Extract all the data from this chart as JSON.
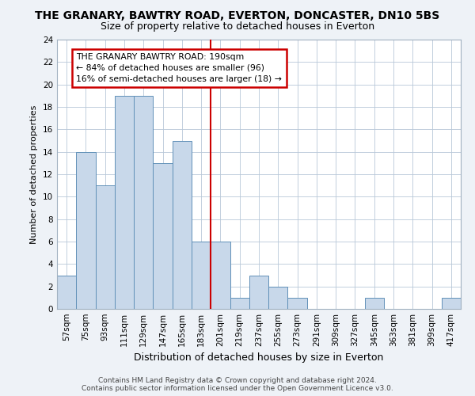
{
  "title": "THE GRANARY, BAWTRY ROAD, EVERTON, DONCASTER, DN10 5BS",
  "subtitle": "Size of property relative to detached houses in Everton",
  "xlabel": "Distribution of detached houses by size in Everton",
  "ylabel": "Number of detached properties",
  "categories": [
    "57sqm",
    "75sqm",
    "93sqm",
    "111sqm",
    "129sqm",
    "147sqm",
    "165sqm",
    "183sqm",
    "201sqm",
    "219sqm",
    "237sqm",
    "255sqm",
    "273sqm",
    "291sqm",
    "309sqm",
    "327sqm",
    "345sqm",
    "363sqm",
    "381sqm",
    "399sqm",
    "417sqm"
  ],
  "values": [
    3,
    14,
    11,
    19,
    19,
    13,
    15,
    6,
    6,
    1,
    3,
    2,
    1,
    0,
    0,
    0,
    1,
    0,
    0,
    0,
    1
  ],
  "bar_color": "#c8d8ea",
  "bar_edgecolor": "#6090b8",
  "vline_index": 7,
  "annotation_text": "THE GRANARY BAWTRY ROAD: 190sqm\n← 84% of detached houses are smaller (96)\n16% of semi-detached houses are larger (18) →",
  "annotation_box_facecolor": "#ffffff",
  "annotation_box_edgecolor": "#cc0000",
  "ylim": [
    0,
    24
  ],
  "yticks": [
    0,
    2,
    4,
    6,
    8,
    10,
    12,
    14,
    16,
    18,
    20,
    22,
    24
  ],
  "footer_line1": "Contains HM Land Registry data © Crown copyright and database right 2024.",
  "footer_line2": "Contains public sector information licensed under the Open Government Licence v3.0.",
  "bg_color": "#eef2f7",
  "plot_bg_color": "#ffffff",
  "grid_color": "#b8c8d8",
  "title_fontsize": 10,
  "subtitle_fontsize": 9,
  "xlabel_fontsize": 9,
  "ylabel_fontsize": 8,
  "tick_fontsize": 7.5,
  "footer_fontsize": 6.5
}
